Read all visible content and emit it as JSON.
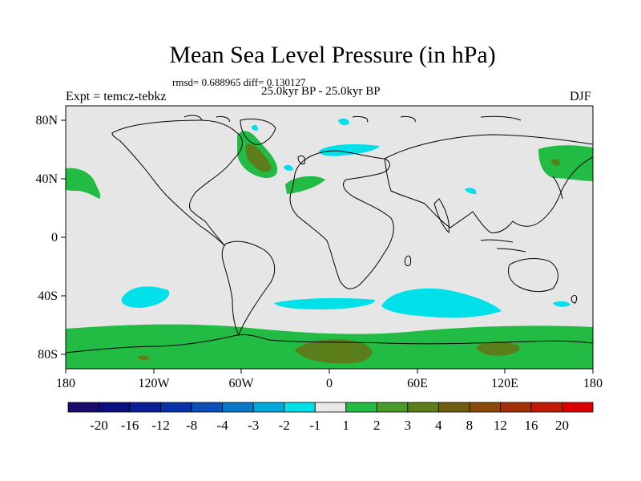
{
  "title": "Mean Sea Level Pressure (in hPa)",
  "stats": "rmsd= 0.688965 diff= 0.130127",
  "period": "25.0kyr BP - 25.0kyr BP",
  "experiment": "Expt = temcz-tebkz",
  "season": "DJF",
  "map": {
    "lat_range": [
      -90,
      90
    ],
    "lon_range": [
      -180,
      180
    ],
    "lat_ticks": [
      "80N",
      "40N",
      "0",
      "40S",
      "80S"
    ],
    "lon_ticks": [
      "180",
      "120W",
      "60W",
      "0",
      "60E",
      "120E",
      "180"
    ],
    "background_color": "#e6e6e6"
  },
  "colorbar": {
    "labels": [
      "-20",
      "-16",
      "-12",
      "-8",
      "-4",
      "-3",
      "-2",
      "-1",
      "1",
      "2",
      "3",
      "4",
      "8",
      "12",
      "16",
      "20"
    ],
    "colors": [
      "#1a0a6b",
      "#0b107e",
      "#0a1e96",
      "#0a32a8",
      "#0a50b8",
      "#0a78c8",
      "#00a8dc",
      "#00e0e8",
      "#e8e8e8",
      "#22bb44",
      "#4a9a2a",
      "#5c7e1a",
      "#6e5e10",
      "#8a4a08",
      "#a23006",
      "#c01a04",
      "#dd0000"
    ]
  }
}
